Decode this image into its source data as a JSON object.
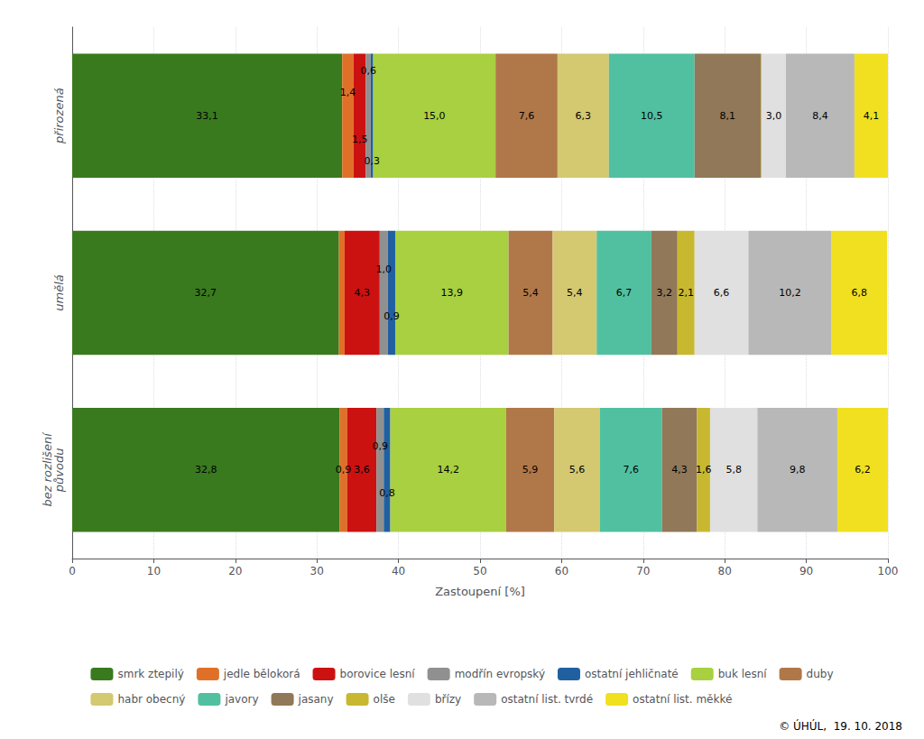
{
  "chart_data": {
    "type": "bar",
    "orientation": "horizontal",
    "stacked": true,
    "data_labels": true,
    "grid": true,
    "legend": "bottom",
    "xlabel": "Zastoupení [%]",
    "xlim": [
      0,
      100
    ],
    "xticks": [
      0,
      10,
      20,
      30,
      40,
      50,
      60,
      70,
      80,
      90,
      100
    ],
    "categories": [
      "přirozená",
      "umělá",
      "bez rozlišení\npůvodu"
    ],
    "annotations": [
      "© ÚHÚL,  19. 10. 2018"
    ],
    "series": [
      {
        "name": "smrk ztepilý",
        "color": "#3a7a1e",
        "values": [
          33.1,
          32.7,
          32.8
        ],
        "value_labels": [
          "33,1",
          "32,7",
          "32,8"
        ]
      },
      {
        "name": "jedle bělokorá",
        "color": "#e07028",
        "values": [
          1.4,
          0.7,
          0.9
        ],
        "value_labels": [
          "1,4",
          null,
          "0,9"
        ]
      },
      {
        "name": "borovice lesní",
        "color": "#cc1111",
        "values": [
          1.5,
          4.3,
          3.6
        ],
        "value_labels": [
          "1,5",
          "4,3",
          "3,6"
        ]
      },
      {
        "name": "modřín evropský",
        "color": "#909090",
        "values": [
          0.6,
          1.0,
          0.9
        ],
        "value_labels": [
          "0,6",
          "1,0",
          "0,9"
        ]
      },
      {
        "name": "ostatní jehličnaté",
        "color": "#2060a0",
        "values": [
          0.3,
          0.9,
          0.8
        ],
        "value_labels": [
          "0,3",
          "0,9",
          "0,8"
        ]
      },
      {
        "name": "buk lesní",
        "color": "#a8d040",
        "values": [
          15.0,
          13.9,
          14.2
        ],
        "value_labels": [
          "15,0",
          "13,9",
          "14,2"
        ]
      },
      {
        "name": "duby",
        "color": "#b07848",
        "values": [
          7.6,
          5.4,
          5.9
        ],
        "value_labels": [
          "7,6",
          "5,4",
          "5,9"
        ]
      },
      {
        "name": "habr obecný",
        "color": "#d4c870",
        "values": [
          6.3,
          5.4,
          5.6
        ],
        "value_labels": [
          "6,3",
          "5,4",
          "5,6"
        ]
      },
      {
        "name": "javory",
        "color": "#50c0a0",
        "values": [
          10.5,
          6.7,
          7.6
        ],
        "value_labels": [
          "10,5",
          "6,7",
          "7,6"
        ]
      },
      {
        "name": "jasany",
        "color": "#907858",
        "values": [
          8.1,
          3.2,
          4.3
        ],
        "value_labels": [
          "8,1",
          "3,2",
          "4,3"
        ]
      },
      {
        "name": "olše",
        "color": "#c8b830",
        "values": [
          0.1,
          2.1,
          1.6
        ],
        "value_labels": [
          null,
          "2,1",
          "1,6"
        ]
      },
      {
        "name": "břízy",
        "color": "#e0e0e0",
        "values": [
          3.0,
          6.6,
          5.8
        ],
        "value_labels": [
          "3,0",
          "6,6",
          "5,8"
        ]
      },
      {
        "name": "ostatní list. tvrdé",
        "color": "#b8b8b8",
        "values": [
          8.4,
          10.2,
          9.8
        ],
        "value_labels": [
          "8,4",
          "10,2",
          "9,8"
        ]
      },
      {
        "name": "ostatní list. měkké",
        "color": "#f0e020",
        "values": [
          4.1,
          6.8,
          6.2
        ],
        "value_labels": [
          "4,1",
          "6,8",
          "6,2"
        ]
      }
    ]
  }
}
